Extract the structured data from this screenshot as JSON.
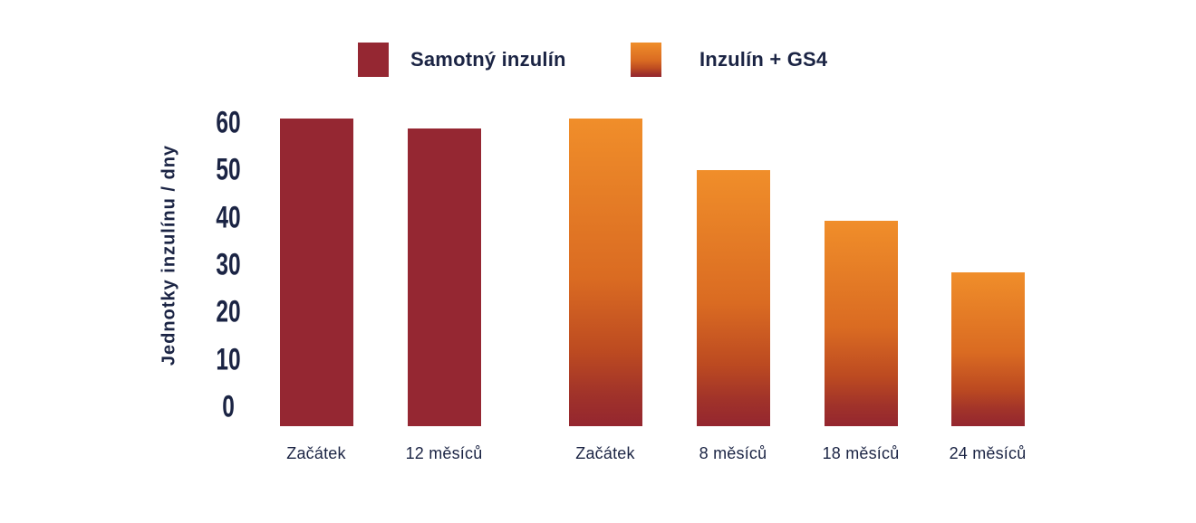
{
  "chart_data": {
    "type": "bar",
    "ylabel": "Jednotky inzulínu / dny",
    "xlabel": "",
    "ylim": [
      0,
      60
    ],
    "yticks": [
      60,
      50,
      40,
      30,
      20,
      10,
      0
    ],
    "grid": false,
    "legend_position": "top",
    "background": "#FFFFFF",
    "series": [
      {
        "name": "Samotný inzulín",
        "categories": [
          "Začátek",
          "12 měsíců"
        ],
        "values": [
          60,
          58
        ]
      },
      {
        "name": "Inzulín + GS4",
        "categories": [
          "Začátek",
          "8 měsíců",
          "18 měsíců",
          "24 měsíců"
        ],
        "values": [
          60,
          50,
          40,
          30
        ]
      }
    ],
    "colors": {
      "samotny_inzulin": "#952732",
      "inzulin_gs4_gradient": [
        "#F08E2A 0%",
        "#DA6B22 52%",
        "#BC4A21 76%",
        "#A0322A 90%",
        "#94262F 100%"
      ],
      "text": "#1B2444"
    }
  }
}
